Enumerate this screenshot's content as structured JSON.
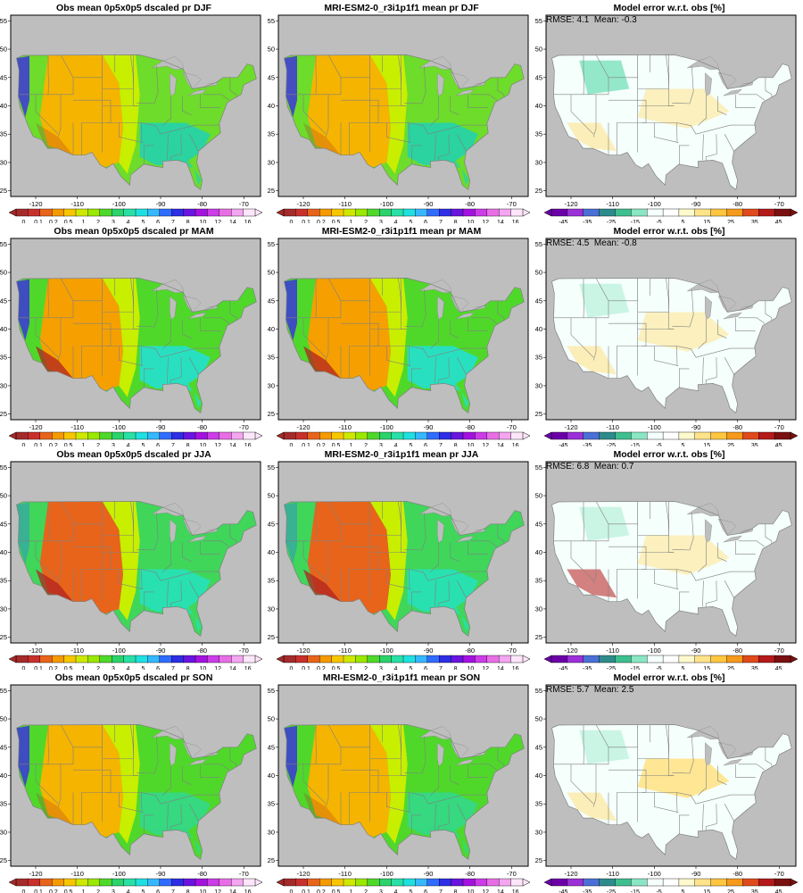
{
  "rows": [
    {
      "season": "DJF",
      "stats": {
        "rmse": "4.1",
        "mean": "-0.3"
      }
    },
    {
      "season": "MAM",
      "stats": {
        "rmse": "4.5",
        "mean": "-0.8"
      }
    },
    {
      "season": "JJA",
      "stats": {
        "rmse": "6.8",
        "mean": "0.7"
      }
    },
    {
      "season": "SON",
      "stats": {
        "rmse": "5.7",
        "mean": "2.5"
      }
    }
  ],
  "titles": {
    "obs": [
      "Obs mean 0p5x0p5 dscaled pr DJF",
      "Obs mean 0p5x0p5 dscaled pr MAM",
      "Obs mean 0p5x0p5 dscaled pr JJA",
      "Obs mean 0p5x0p5 dscaled pr SON"
    ],
    "model": [
      "MRI-ESM2-0_r3i1p1f1 mean pr DJF",
      "MRI-ESM2-0_r3i1p1f1 mean pr MAM",
      "MRI-ESM2-0_r3i1p1f1 mean pr JJA",
      "MRI-ESM2-0_r3i1p1f1 mean pr SON"
    ],
    "error": "Model error w.r.t. obs [%]"
  },
  "stat_labels": {
    "rmse": "RMSE:",
    "mean": "Mean:"
  },
  "axes": {
    "lon_ticks": [
      "-120",
      "-110",
      "-100",
      "-90",
      "-80",
      "-70"
    ],
    "lat_ticks": [
      "25",
      "30",
      "35",
      "40",
      "45",
      "50",
      "55"
    ]
  },
  "colorbars": {
    "precip": {
      "labels": [
        "0",
        "0.1",
        "0.2",
        "0.5",
        "1",
        "2",
        "3",
        "4",
        "5",
        "6",
        "7",
        "8",
        "10",
        "12",
        "14",
        "16"
      ],
      "colors": [
        "#a52a2a",
        "#c9302c",
        "#e8641a",
        "#f59a00",
        "#f7c600",
        "#cfe800",
        "#9be800",
        "#4fd82a",
        "#2bd36b",
        "#28e0a6",
        "#1fe0e0",
        "#36b8ff",
        "#2f6cff",
        "#2e2ee6",
        "#6a14e0",
        "#a412e0",
        "#cc3ce8",
        "#e86ee6",
        "#f4a6f0",
        "#fde6fa"
      ]
    },
    "error": {
      "labels": [
        "-45",
        "-35",
        "-25",
        "-15",
        "-5",
        "5",
        "15",
        "25",
        "35",
        "45"
      ],
      "colors": [
        "#6b00a8",
        "#9b30d8",
        "#4a6fd6",
        "#2e8b8b",
        "#3fbf8f",
        "#8ae6c4",
        "#f5fffc",
        "#ffffff",
        "#fffacd",
        "#ffe38a",
        "#ffc640",
        "#f59a1a",
        "#e04a1a",
        "#b41a1a",
        "#7a1010"
      ]
    }
  },
  "map_colors": {
    "ocean": "#bebebe",
    "obs": {
      "DJF": {
        "base": "#6ddc2a",
        "dry": "#f5b400",
        "mid": "#c8ee00",
        "wet": "#2bd3a0",
        "vwet": "#3a2ae6"
      },
      "MAM": {
        "base": "#4fd82a",
        "dry": "#f5a000",
        "mid": "#c8ee00",
        "wet": "#28e0c0",
        "vwet": "#3a2ae6"
      },
      "JJA": {
        "base": "#3fd65a",
        "dry": "#e8641a",
        "mid": "#c8ee00",
        "wet": "#28e0b0",
        "vwet": "#2f6cff"
      },
      "SON": {
        "base": "#4fd82a",
        "dry": "#f5b400",
        "mid": "#c8ee00",
        "wet": "#36d880",
        "vwet": "#3a2ae6"
      }
    },
    "error": {
      "base": "#f5fffc",
      "pos": "#ffe38a",
      "neg": "#8ae6c4",
      "strong": "#b41a1a"
    }
  }
}
